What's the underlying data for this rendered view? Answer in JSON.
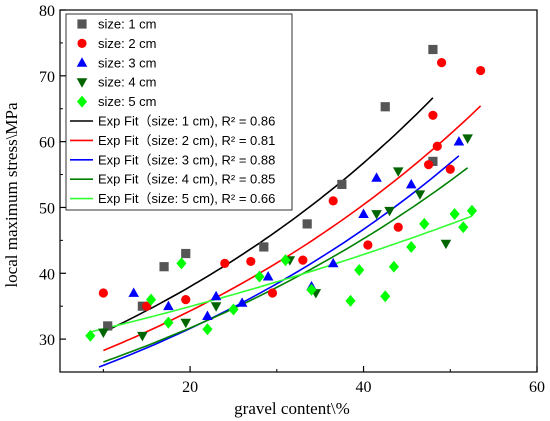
{
  "chart_data": {
    "type": "scatter",
    "xlabel": "gravel content\\%",
    "ylabel": "local maximum stress\\MPa",
    "xlim": [
      5,
      60
    ],
    "ylim": [
      25,
      80
    ],
    "xticks": [
      20,
      40,
      60
    ],
    "yticks": [
      30,
      40,
      50,
      60,
      70,
      80
    ],
    "grid": false,
    "legend_position": "top-left",
    "series": [
      {
        "name": "size: 1 cm",
        "marker": "square",
        "color": "#555555",
        "points": [
          [
            10.5,
            32.0
          ],
          [
            14.5,
            35.0
          ],
          [
            17.0,
            41.0
          ],
          [
            19.5,
            43.0
          ],
          [
            28.5,
            44.0
          ],
          [
            33.5,
            47.5
          ],
          [
            37.5,
            53.5
          ],
          [
            42.5,
            65.3
          ],
          [
            48.0,
            57.0
          ],
          [
            48.0,
            74.0
          ]
        ]
      },
      {
        "name": "size: 2 cm",
        "marker": "circle",
        "color": "#ff0000",
        "points": [
          [
            10.0,
            37.0
          ],
          [
            15.0,
            35.0
          ],
          [
            19.5,
            36.0
          ],
          [
            24.0,
            41.5
          ],
          [
            27.0,
            41.8
          ],
          [
            29.5,
            37.0
          ],
          [
            33.0,
            42.0
          ],
          [
            36.5,
            51.0
          ],
          [
            40.5,
            44.3
          ],
          [
            44.0,
            47.0
          ],
          [
            47.5,
            56.5
          ],
          [
            48.0,
            64.0
          ],
          [
            48.5,
            59.3
          ],
          [
            49.0,
            72.0
          ],
          [
            50.0,
            55.8
          ],
          [
            53.5,
            70.8
          ]
        ]
      },
      {
        "name": "size: 3 cm",
        "marker": "triangle-up",
        "color": "#0000ff",
        "points": [
          [
            13.5,
            37.0
          ],
          [
            17.5,
            35.0
          ],
          [
            22.0,
            33.5
          ],
          [
            23.0,
            36.5
          ],
          [
            26.0,
            35.5
          ],
          [
            29.0,
            39.5
          ],
          [
            34.0,
            38.0
          ],
          [
            36.5,
            41.5
          ],
          [
            40.0,
            49.0
          ],
          [
            41.5,
            54.5
          ],
          [
            45.5,
            53.5
          ],
          [
            51.0,
            60.0
          ]
        ]
      },
      {
        "name": "size: 4 cm",
        "marker": "triangle-down",
        "color": "#006400",
        "points": [
          [
            10.0,
            31.0
          ],
          [
            14.5,
            30.5
          ],
          [
            19.5,
            32.5
          ],
          [
            23.0,
            35.0
          ],
          [
            31.5,
            42.0
          ],
          [
            34.5,
            37.0
          ],
          [
            41.5,
            49.0
          ],
          [
            43.0,
            49.5
          ],
          [
            44.0,
            55.5
          ],
          [
            46.5,
            52.0
          ],
          [
            49.5,
            44.5
          ],
          [
            52.0,
            60.5
          ]
        ]
      },
      {
        "name": "size: 5 cm",
        "marker": "diamond",
        "color": "#00ff00",
        "points": [
          [
            8.5,
            30.5
          ],
          [
            15.5,
            36.0
          ],
          [
            17.5,
            32.5
          ],
          [
            19.0,
            41.5
          ],
          [
            22.0,
            31.5
          ],
          [
            25.0,
            34.5
          ],
          [
            28.0,
            39.5
          ],
          [
            31.0,
            42.0
          ],
          [
            34.0,
            37.5
          ],
          [
            38.5,
            35.8
          ],
          [
            39.5,
            40.5
          ],
          [
            42.5,
            36.5
          ],
          [
            43.5,
            41.0
          ],
          [
            45.5,
            44.0
          ],
          [
            47.0,
            47.5
          ],
          [
            50.5,
            49.0
          ],
          [
            51.5,
            47.0
          ],
          [
            52.5,
            49.5
          ]
        ]
      }
    ],
    "fits": [
      {
        "name": "Exp Fit（size: 1 cm), R² = 0.86",
        "color": "#000000",
        "x": [
          10.5,
          48.0
        ],
        "a": 25.4,
        "b": 0.0201
      },
      {
        "name": "Exp Fit（size: 2 cm), R² = 0.81",
        "color": "#ff0000",
        "x": [
          10.0,
          53.5
        ],
        "a": 23.3,
        "b": 0.0193
      },
      {
        "name": "Exp Fit（size: 3 cm), R² = 0.88",
        "color": "#0000ff",
        "x": [
          9.5,
          51.0
        ],
        "a": 21.4,
        "b": 0.0195
      },
      {
        "name": "Exp Fit（size: 4 cm), R² = 0.85",
        "color": "#008000",
        "x": [
          10.0,
          52.0
        ],
        "a": 22.2,
        "b": 0.0178
      },
      {
        "name": "Exp Fit（size: 5 cm), R² = 0.66",
        "color": "#33ff33",
        "x": [
          8.5,
          52.5
        ],
        "a": 28.5,
        "b": 0.0102
      }
    ]
  }
}
